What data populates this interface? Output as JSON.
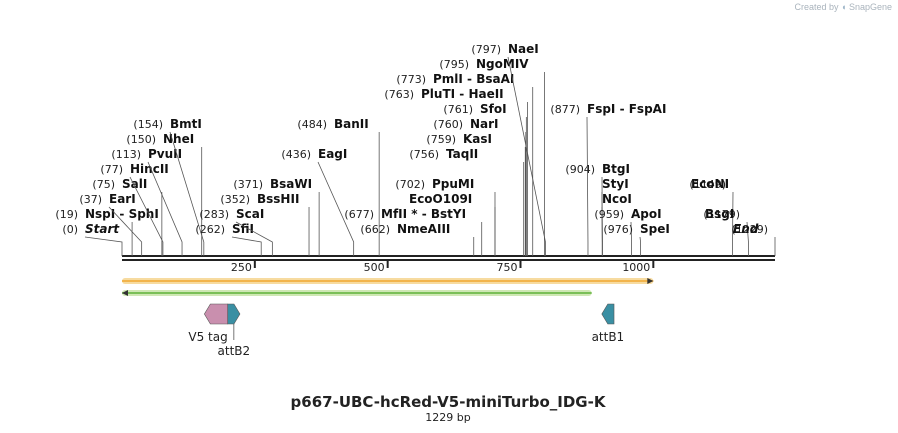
{
  "credit": {
    "prefix": "Created by",
    "brand": "SnapGene"
  },
  "plasmid": {
    "name": "p667-UBC-hcRed-V5-miniTurbo_IDG-K",
    "size_label": "1229 bp",
    "length_bp": 1229
  },
  "axis": {
    "ticks": [
      250,
      500,
      750,
      1000
    ]
  },
  "sites": [
    {
      "pos": 0,
      "pos_label": "(0)",
      "names": "Start",
      "italic": true
    },
    {
      "pos": 19,
      "pos_label": "(19)",
      "names": "NspI  -  SphI"
    },
    {
      "pos": 37,
      "pos_label": "(37)",
      "names": "EarI"
    },
    {
      "pos": 75,
      "pos_label": "(75)",
      "names": "SalI"
    },
    {
      "pos": 77,
      "pos_label": "(77)",
      "names": "HincII"
    },
    {
      "pos": 113,
      "pos_label": "(113)",
      "names": "PvuII"
    },
    {
      "pos": 150,
      "pos_label": "(150)",
      "names": "NheI"
    },
    {
      "pos": 154,
      "pos_label": "(154)",
      "names": "BmtI"
    },
    {
      "pos": 262,
      "pos_label": "(262)",
      "names": "SfiI"
    },
    {
      "pos": 283,
      "pos_label": "(283)",
      "names": "ScaI"
    },
    {
      "pos": 352,
      "pos_label": "(352)",
      "names": "BssHII"
    },
    {
      "pos": 371,
      "pos_label": "(371)",
      "names": "BsaWI"
    },
    {
      "pos": 436,
      "pos_label": "(436)",
      "names": "EagI"
    },
    {
      "pos": 484,
      "pos_label": "(484)",
      "names": "BanII"
    },
    {
      "pos": 662,
      "pos_label": "(662)",
      "names": "NmeAIII"
    },
    {
      "pos": 677,
      "pos_label": "(677)",
      "names": "MfII *  -  BstYI"
    },
    {
      "pos": 702,
      "pos_label": "",
      "names": "EcoO109I"
    },
    {
      "pos": 702,
      "pos_label": "(702)",
      "names": "PpuMI"
    },
    {
      "pos": 756,
      "pos_label": "(756)",
      "names": "TaqII"
    },
    {
      "pos": 759,
      "pos_label": "(759)",
      "names": "KasI"
    },
    {
      "pos": 760,
      "pos_label": "(760)",
      "names": "NarI"
    },
    {
      "pos": 761,
      "pos_label": "(761)",
      "names": "SfoI"
    },
    {
      "pos": 763,
      "pos_label": "(763)",
      "names": "PluTI  -  HaeII"
    },
    {
      "pos": 773,
      "pos_label": "(773)",
      "names": "PmlI  -  BsaAI"
    },
    {
      "pos": 795,
      "pos_label": "(795)",
      "names": "NgoMIV"
    },
    {
      "pos": 797,
      "pos_label": "(797)",
      "names": "NaeI"
    },
    {
      "pos": 877,
      "pos_label": "(877)",
      "names": "FspI  -  FspAI"
    },
    {
      "pos": 904,
      "pos_label": "",
      "names": "NcoI"
    },
    {
      "pos": 904,
      "pos_label": "",
      "names": "StyI"
    },
    {
      "pos": 904,
      "pos_label": "(904)",
      "names": "BtgI"
    },
    {
      "pos": 959,
      "pos_label": "(959)",
      "names": "ApoI"
    },
    {
      "pos": 976,
      "pos_label": "(976)",
      "names": "SpeI"
    },
    {
      "pos": 1149,
      "pos_label": "(1149)",
      "names": "EcoNI"
    },
    {
      "pos": 1179,
      "pos_label": "(1179)",
      "names": "BsgI"
    },
    {
      "pos": 1229,
      "pos_label": "(1229)",
      "names": "End",
      "italic": true
    }
  ],
  "ranges": [
    {
      "name": "orange-range",
      "start": 0,
      "end": 1000,
      "direction": "forward",
      "color": "#f0a830",
      "glow": "#f7dba0"
    },
    {
      "name": "green-range",
      "start": 0,
      "end": 884,
      "direction": "reverse",
      "color": "#5fb13a",
      "glow": "#cfe8b4"
    }
  ],
  "features": [
    {
      "name": "V5 tag",
      "start": 155,
      "end": 199,
      "direction": "reverse",
      "color": "#c98fae"
    },
    {
      "name": "attB2",
      "start": 199,
      "end": 222,
      "direction": "forward",
      "color": "#3a8fa3"
    },
    {
      "name": "attB1",
      "start": 903,
      "end": 926,
      "direction": "reverse",
      "color": "#3a8fa3"
    }
  ]
}
